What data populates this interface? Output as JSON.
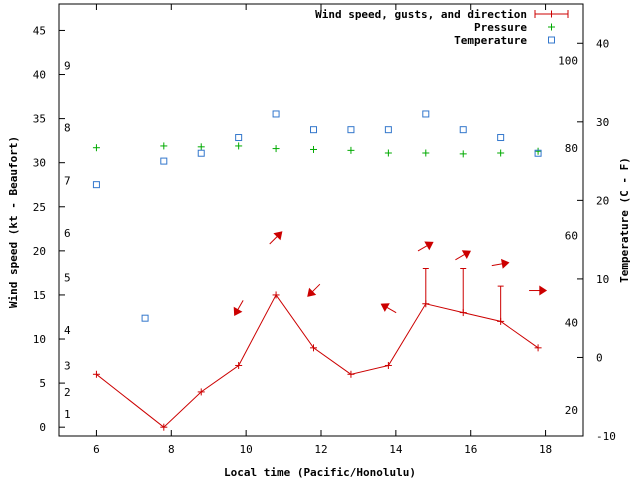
{
  "chart_data": {
    "type": "line",
    "title": "",
    "xlabel": "Local time (Pacific/Honolulu)",
    "ylabel_left": "Wind speed (kt - Beaufort)",
    "ylabel_right": "Temperature (C - F)",
    "x_range": [
      5,
      19
    ],
    "x_ticks": [
      6,
      8,
      10,
      12,
      14,
      16,
      18
    ],
    "y_range_kt": [
      -1,
      48
    ],
    "kt_ticks": [
      0,
      5,
      10,
      15,
      20,
      25,
      30,
      35,
      40,
      45
    ],
    "beaufort_ticks": [
      {
        "label": "1",
        "kt": 1.5
      },
      {
        "label": "2",
        "kt": 4
      },
      {
        "label": "3",
        "kt": 7
      },
      {
        "label": "4",
        "kt": 11
      },
      {
        "label": "5",
        "kt": 17
      },
      {
        "label": "6",
        "kt": 22
      },
      {
        "label": "7",
        "kt": 28
      },
      {
        "label": "8",
        "kt": 34
      },
      {
        "label": "9",
        "kt": 41
      }
    ],
    "y_range_c": [
      -10,
      45
    ],
    "celsius_ticks": [
      -10,
      0,
      10,
      20,
      30,
      40
    ],
    "fahrenheit_ticks": [
      20,
      40,
      60,
      80,
      100
    ],
    "legend_position": "top-right",
    "series": [
      {
        "name": "Wind speed, gusts, and direction",
        "color": "#cc0000",
        "marker": "+",
        "x": [
          6,
          7.8,
          8.8,
          9.8,
          10.8,
          11.8,
          12.8,
          13.8,
          14.8,
          15.8,
          16.8,
          17.8
        ],
        "speed_kt": [
          6,
          0,
          4,
          7,
          15,
          9,
          6,
          7,
          14,
          13,
          12,
          9
        ],
        "gust_kt": [
          null,
          null,
          null,
          null,
          null,
          null,
          null,
          null,
          18,
          18,
          16,
          null
        ],
        "direction_deg": [
          null,
          null,
          null,
          210,
          45,
          225,
          null,
          300,
          60,
          60,
          80,
          90
        ]
      },
      {
        "name": "Pressure",
        "color": "#00aa00",
        "marker": "+",
        "x": [
          6,
          7.8,
          8.8,
          9.8,
          10.8,
          11.8,
          12.8,
          13.8,
          14.8,
          15.8,
          16.8,
          17.8
        ],
        "y_kt": [
          31.7,
          31.9,
          31.8,
          31.9,
          31.6,
          31.5,
          31.4,
          31.1,
          31.1,
          31.0,
          31.1,
          31.3
        ]
      },
      {
        "name": "Temperature",
        "color": "#3377cc",
        "marker": "square",
        "x": [
          6,
          7.3,
          7.8,
          8.8,
          9.8,
          10.8,
          11.8,
          12.8,
          13.8,
          14.8,
          15.8,
          16.8,
          17.8
        ],
        "temp_c": [
          22,
          5,
          25,
          26,
          28,
          31,
          29,
          29,
          29,
          31,
          29,
          28,
          26
        ]
      }
    ]
  }
}
